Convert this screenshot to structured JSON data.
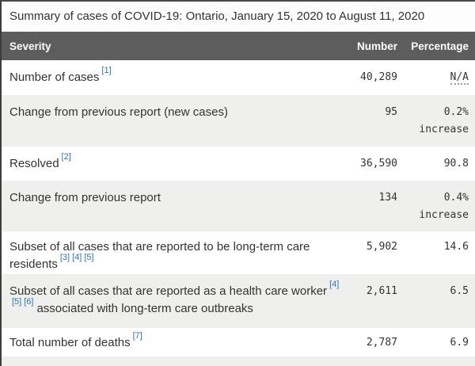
{
  "title": "Summary of cases of COVID-19: Ontario, January 15, 2020 to August 11, 2020",
  "table": {
    "header": {
      "severity": "Severity",
      "number": "Number",
      "percentage": "Percentage"
    },
    "rows": [
      {
        "label": "Number of cases",
        "footnotes": [
          "[1]"
        ],
        "label_suffix": "",
        "number": "40,289",
        "percentage": "N/A",
        "percentage_line2": "",
        "na_abbr": true
      },
      {
        "label": "Change from previous report (new cases)",
        "footnotes": [],
        "label_suffix": "",
        "number": "95",
        "percentage": "0.2%",
        "percentage_line2": "increase",
        "na_abbr": false
      },
      {
        "label": "Resolved",
        "footnotes": [
          "[2]"
        ],
        "label_suffix": "",
        "number": "36,590",
        "percentage": "90.8",
        "percentage_line2": "",
        "na_abbr": false
      },
      {
        "label": "Change from previous report",
        "footnotes": [],
        "label_suffix": "",
        "number": "134",
        "percentage": "0.4%",
        "percentage_line2": "increase",
        "na_abbr": false
      },
      {
        "label": "Subset of all cases that are reported to be long-term care residents",
        "footnotes": [
          "[3]",
          "[4]",
          "[5]"
        ],
        "label_suffix": "",
        "number": "5,902",
        "percentage": "14.6",
        "percentage_line2": "",
        "na_abbr": false
      },
      {
        "label": "Subset of all cases that are reported as a health care worker",
        "footnotes": [
          "[4]",
          "[5]",
          "[6]"
        ],
        "label_suffix": "associated with long-term care outbreaks",
        "number": "2,611",
        "percentage": "6.5",
        "percentage_line2": "",
        "na_abbr": false
      },
      {
        "label": "Total number of deaths",
        "footnotes": [
          "[7]"
        ],
        "label_suffix": "",
        "number": "2,787",
        "percentage": "6.9",
        "percentage_line2": "",
        "na_abbr": false
      }
    ]
  },
  "colors": {
    "header_bg": "#5d5d5d",
    "header_text": "#ffffff",
    "row_alt_bg": "#efefee",
    "body_text": "#333333",
    "footnote_link": "#2e77bb",
    "abbr_dotted_underline": "#9a9a9a",
    "outer_border": "#3d3d3d"
  }
}
